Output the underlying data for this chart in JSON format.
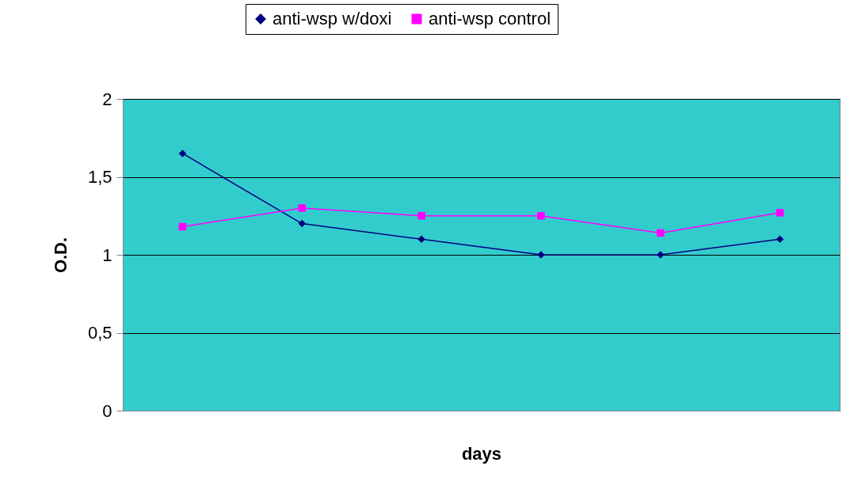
{
  "chart_data": {
    "type": "line",
    "xlabel": "days",
    "ylabel": "O.D.",
    "categories": [
      null,
      null,
      null,
      null,
      null,
      null
    ],
    "series": [
      {
        "name": "anti-wsp w/doxi",
        "color": "#000080",
        "marker": "diamond",
        "values": [
          1.65,
          1.2,
          1.1,
          1.0,
          1.0,
          1.1
        ]
      },
      {
        "name": "anti-wsp control",
        "color": "#ff00ff",
        "marker": "square",
        "values": [
          1.18,
          1.3,
          1.25,
          1.25,
          1.14,
          1.27
        ]
      }
    ],
    "ylim": [
      0,
      2
    ],
    "yticks": [
      0,
      {
        "value": 0.5,
        "label": "0,5"
      },
      1,
      {
        "value": 1.5,
        "label": "1,5"
      },
      2
    ],
    "grid": "y",
    "legend": "top",
    "tick_labels": "y",
    "line_style": "solid"
  }
}
